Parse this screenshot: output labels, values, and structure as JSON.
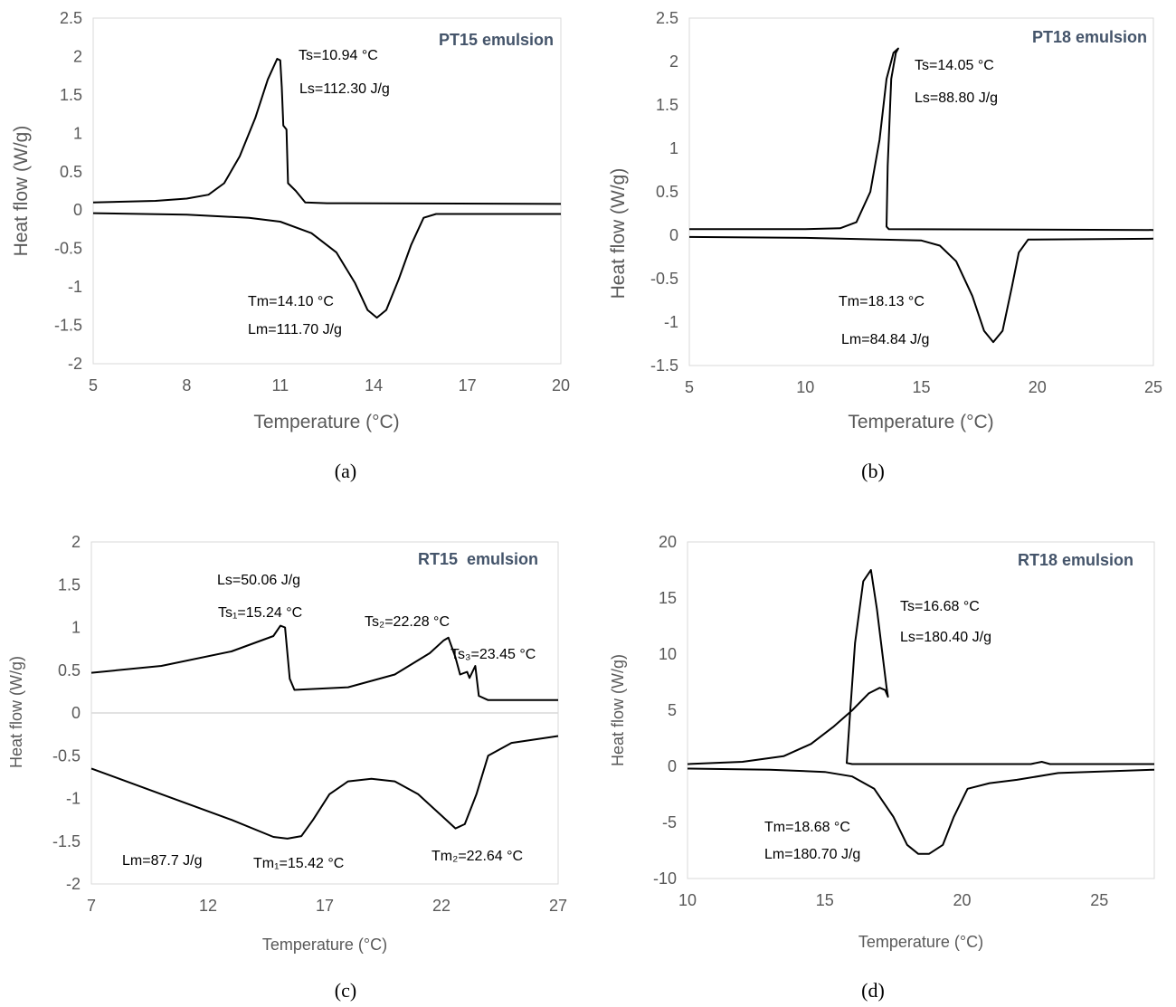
{
  "chart_data": [
    {
      "panel": "(a)",
      "type": "line",
      "title": "PT15 emulsion",
      "xlabel": "Temperature (°C)",
      "ylabel": "Heat flow (W/g)",
      "xlim": [
        5,
        20
      ],
      "ylim": [
        -2,
        2.5
      ],
      "xticks": [
        "5",
        "8",
        "11",
        "14",
        "17",
        "20"
      ],
      "yticks": [
        "-2",
        "-1.5",
        "-1",
        "-0.5",
        "0",
        "0.5",
        "1",
        "1.5",
        "2",
        "2.5"
      ],
      "zero_line": false,
      "annotations": [
        "Ts=10.94 °C",
        "Ls=112.30 J/g",
        "Tm=14.10 °C",
        "Lm=111.70 J/g"
      ],
      "series": [
        {
          "points": [
            [
              5,
              0.1
            ],
            [
              7,
              0.12
            ],
            [
              8,
              0.15
            ],
            [
              8.7,
              0.2
            ],
            [
              9.2,
              0.35
            ],
            [
              9.7,
              0.7
            ],
            [
              10.2,
              1.2
            ],
            [
              10.6,
              1.7
            ],
            [
              10.9,
              1.97
            ],
            [
              11.0,
              1.95
            ],
            [
              11.05,
              1.6
            ],
            [
              11.1,
              1.1
            ],
            [
              11.2,
              1.05
            ],
            [
              11.25,
              0.35
            ],
            [
              11.5,
              0.25
            ],
            [
              11.8,
              0.1
            ],
            [
              12.5,
              0.09
            ],
            [
              20,
              0.08
            ]
          ]
        },
        {
          "points": [
            [
              5,
              -0.04
            ],
            [
              8,
              -0.06
            ],
            [
              10,
              -0.1
            ],
            [
              11,
              -0.15
            ],
            [
              12,
              -0.3
            ],
            [
              12.8,
              -0.55
            ],
            [
              13.4,
              -0.95
            ],
            [
              13.8,
              -1.3
            ],
            [
              14.1,
              -1.4
            ],
            [
              14.4,
              -1.3
            ],
            [
              14.8,
              -0.9
            ],
            [
              15.2,
              -0.45
            ],
            [
              15.6,
              -0.1
            ],
            [
              16,
              -0.05
            ],
            [
              20,
              -0.05
            ]
          ]
        }
      ]
    },
    {
      "panel": "(b)",
      "type": "line",
      "title": "PT18 emulsion",
      "xlabel": "Temperature (°C)",
      "ylabel": "Heat flow (W/g)",
      "xlim": [
        5,
        25
      ],
      "ylim": [
        -1.5,
        2.5
      ],
      "xticks": [
        "5",
        "10",
        "15",
        "20",
        "25"
      ],
      "yticks": [
        "-1.5",
        "-1",
        "-0.5",
        "0",
        "0.5",
        "1",
        "1.5",
        "2",
        "2.5"
      ],
      "zero_line": false,
      "annotations": [
        "Ts=14.05 °C",
        "Ls=88.80 J/g",
        "Tm=18.13 °C",
        "Lm=84.84 J/g"
      ],
      "series": [
        {
          "points": [
            [
              5,
              0.07
            ],
            [
              10,
              0.07
            ],
            [
              11.5,
              0.08
            ],
            [
              12.2,
              0.15
            ],
            [
              12.8,
              0.5
            ],
            [
              13.2,
              1.1
            ],
            [
              13.5,
              1.8
            ],
            [
              13.8,
              2.1
            ],
            [
              14.0,
              2.15
            ],
            [
              13.9,
              2.1
            ],
            [
              13.7,
              1.8
            ],
            [
              13.55,
              0.8
            ],
            [
              13.5,
              0.1
            ],
            [
              13.6,
              0.07
            ],
            [
              25,
              0.06
            ]
          ]
        },
        {
          "points": [
            [
              5,
              -0.02
            ],
            [
              10,
              -0.03
            ],
            [
              15,
              -0.06
            ],
            [
              15.8,
              -0.12
            ],
            [
              16.5,
              -0.3
            ],
            [
              17.2,
              -0.7
            ],
            [
              17.7,
              -1.1
            ],
            [
              18.1,
              -1.23
            ],
            [
              18.5,
              -1.1
            ],
            [
              18.9,
              -0.6
            ],
            [
              19.2,
              -0.2
            ],
            [
              19.6,
              -0.05
            ],
            [
              25,
              -0.04
            ]
          ]
        }
      ]
    },
    {
      "panel": "(c)",
      "type": "line",
      "title": "RT15  emulsion",
      "xlabel": "Temperature (°C)",
      "ylabel": "Heat flow (W/g)",
      "xlim": [
        7,
        27
      ],
      "ylim": [
        -2,
        2
      ],
      "xticks": [
        "7",
        "12",
        "17",
        "22",
        "27"
      ],
      "yticks": [
        "-2",
        "-1.5",
        "-1",
        "-0.5",
        "0",
        "0.5",
        "1",
        "1.5",
        "2"
      ],
      "zero_line": true,
      "annotations": [
        "Ls=50.06 J/g",
        "Ts₁=15.24 °C",
        "Ts₂=22.28 °C",
        "Ts₃=23.45 °C",
        "Lm=87.7 J/g",
        "Tm₁=15.42 °C",
        "Tm₂=22.64 °C"
      ],
      "series": [
        {
          "points": [
            [
              7,
              0.47
            ],
            [
              10,
              0.55
            ],
            [
              13,
              0.72
            ],
            [
              14.8,
              0.9
            ],
            [
              15.1,
              1.02
            ],
            [
              15.3,
              1.0
            ],
            [
              15.5,
              0.4
            ],
            [
              15.7,
              0.27
            ],
            [
              18,
              0.3
            ],
            [
              20,
              0.45
            ],
            [
              21.5,
              0.7
            ],
            [
              22.1,
              0.85
            ],
            [
              22.3,
              0.88
            ],
            [
              22.6,
              0.65
            ],
            [
              22.8,
              0.45
            ],
            [
              23.1,
              0.48
            ],
            [
              23.2,
              0.41
            ],
            [
              23.45,
              0.55
            ],
            [
              23.6,
              0.2
            ],
            [
              24,
              0.15
            ],
            [
              27,
              0.15
            ]
          ]
        },
        {
          "points": [
            [
              7,
              -0.65
            ],
            [
              10,
              -0.95
            ],
            [
              13,
              -1.25
            ],
            [
              14.8,
              -1.45
            ],
            [
              15.4,
              -1.47
            ],
            [
              16.0,
              -1.44
            ],
            [
              16.5,
              -1.25
            ],
            [
              17.2,
              -0.95
            ],
            [
              18,
              -0.8
            ],
            [
              19,
              -0.77
            ],
            [
              20,
              -0.8
            ],
            [
              21,
              -0.95
            ],
            [
              22,
              -1.2
            ],
            [
              22.6,
              -1.35
            ],
            [
              23,
              -1.3
            ],
            [
              23.5,
              -0.95
            ],
            [
              24,
              -0.5
            ],
            [
              25,
              -0.35
            ],
            [
              27,
              -0.27
            ]
          ]
        }
      ]
    },
    {
      "panel": "(d)",
      "type": "line",
      "title": "RT18 emulsion",
      "xlabel": "Temperature (°C)",
      "ylabel": "Heat flow (W/g)",
      "xlim": [
        10,
        27
      ],
      "ylim": [
        -10,
        20
      ],
      "xticks": [
        "10",
        "15",
        "20",
        "25"
      ],
      "yticks": [
        "-10",
        "-5",
        "0",
        "5",
        "10",
        "15",
        "20"
      ],
      "zero_line": false,
      "annotations": [
        "Ts=16.68 °C",
        "Ls=180.40 J/g",
        "Tm=18.68 °C",
        "Lm=180.70 J/g"
      ],
      "series": [
        {
          "points": [
            [
              10,
              0.2
            ],
            [
              12,
              0.4
            ],
            [
              13.5,
              0.9
            ],
            [
              14.5,
              2
            ],
            [
              15.3,
              3.5
            ],
            [
              16,
              5
            ],
            [
              16.6,
              6.5
            ],
            [
              17.0,
              7
            ],
            [
              17.2,
              6.8
            ],
            [
              17.3,
              6.2
            ],
            [
              17.25,
              7
            ],
            [
              17.1,
              10
            ],
            [
              16.9,
              14
            ],
            [
              16.68,
              17.5
            ],
            [
              16.4,
              16.5
            ],
            [
              16.1,
              11
            ],
            [
              15.9,
              4
            ],
            [
              15.8,
              0.3
            ],
            [
              16,
              0.2
            ],
            [
              22.5,
              0.2
            ],
            [
              22.9,
              0.4
            ],
            [
              23.2,
              0.2
            ],
            [
              27,
              0.2
            ]
          ]
        },
        {
          "points": [
            [
              10,
              -0.2
            ],
            [
              13,
              -0.3
            ],
            [
              15,
              -0.5
            ],
            [
              16,
              -0.9
            ],
            [
              16.8,
              -2
            ],
            [
              17.5,
              -4.5
            ],
            [
              18.0,
              -7
            ],
            [
              18.4,
              -7.8
            ],
            [
              18.8,
              -7.8
            ],
            [
              19.3,
              -7
            ],
            [
              19.7,
              -4.5
            ],
            [
              20.2,
              -2
            ],
            [
              21,
              -1.5
            ],
            [
              22,
              -1.2
            ],
            [
              23.5,
              -0.6
            ],
            [
              27,
              -0.3
            ]
          ]
        }
      ]
    }
  ]
}
